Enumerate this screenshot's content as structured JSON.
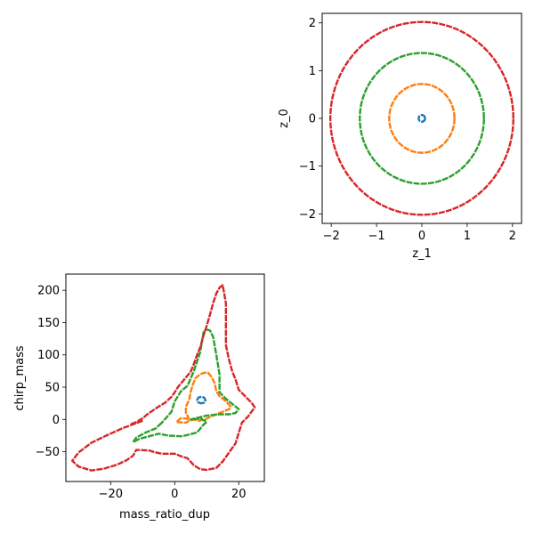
{
  "chart_data": [
    {
      "type": "line",
      "panel": "top-right",
      "xlabel": "z_1",
      "ylabel": "z_0",
      "xlim": [
        -2.2,
        2.2
      ],
      "ylim": [
        -2.2,
        2.2
      ],
      "xticks": [
        -2,
        -1,
        0,
        1,
        2
      ],
      "yticks": [
        -2,
        -1,
        0,
        1,
        2
      ],
      "tick_labels_x": [
        "−2",
        "−1",
        "0",
        "1",
        "2"
      ],
      "tick_labels_y": [
        "−2",
        "−1",
        "0",
        "1",
        "2"
      ],
      "grid": false,
      "series": [
        {
          "color": "#1f77b4",
          "shape": "circle",
          "center": [
            0,
            0
          ],
          "radius": 0.07
        },
        {
          "color": "#ff7f0e",
          "shape": "circle",
          "center": [
            0,
            0
          ],
          "radius": 0.72
        },
        {
          "color": "#2ca02c",
          "shape": "circle",
          "center": [
            0,
            0
          ],
          "radius": 1.37
        },
        {
          "color": "#d62728",
          "shape": "circle",
          "center": [
            0,
            0
          ],
          "radius": 2.02
        }
      ]
    },
    {
      "type": "line",
      "panel": "bottom-left",
      "xlabel": "mass_ratio_dup",
      "ylabel": "chirp_mass",
      "xlim": [
        -34,
        28
      ],
      "ylim": [
        -96,
        225
      ],
      "xticks": [
        -20,
        0,
        20
      ],
      "yticks": [
        -50,
        0,
        50,
        100,
        150,
        200
      ],
      "tick_labels_x": [
        "−20",
        "0",
        "20"
      ],
      "tick_labels_y": [
        "−50",
        "0",
        "50",
        "100",
        "150",
        "200"
      ],
      "grid": false,
      "series": [
        {
          "color": "#1f77b4",
          "x": [
            7.4,
            8.3,
            9.2,
            9.6,
            9.2,
            8.3,
            7.4,
            7.0,
            7.4
          ],
          "y": [
            26,
            25,
            26,
            30,
            34,
            35,
            34,
            30,
            26
          ]
        },
        {
          "color": "#ff7f0e",
          "x": [
            4.5,
            2.0,
            0.5,
            3.5,
            4.5,
            6.0,
            7.5,
            9.5,
            11.5,
            13.5,
            15.5,
            17.0,
            17.5,
            16.0,
            14.0,
            13.0,
            12.5,
            11.5,
            10.5,
            10.0,
            9.0,
            8.0,
            6.5,
            5.5,
            5.0,
            4.5,
            3.5,
            3.5,
            4.5
          ],
          "y": [
            1,
            2,
            -4,
            -5,
            -2,
            0,
            -2,
            0,
            5,
            9,
            13,
            16,
            20,
            28,
            36,
            44,
            56,
            66,
            72,
            73,
            72,
            70,
            64,
            52,
            42,
            30,
            20,
            10,
            1
          ]
        },
        {
          "color": "#2ca02c",
          "x": [
            -4,
            -6,
            -9,
            -12,
            -13,
            -11,
            -8,
            -5,
            -2,
            2,
            4,
            7,
            9,
            10,
            8,
            6,
            5,
            10,
            14,
            17,
            19,
            20,
            18,
            16,
            14,
            14,
            13,
            12,
            11,
            10,
            9,
            8,
            6,
            4,
            2,
            0,
            -1,
            -4
          ],
          "y": [
            -5,
            -14,
            -20,
            -28,
            -35,
            -30,
            -26,
            -22,
            -25,
            -26,
            -24,
            -20,
            -8,
            -4,
            2,
            0,
            0,
            6,
            8,
            8,
            10,
            16,
            24,
            32,
            42,
            70,
            100,
            128,
            138,
            139,
            135,
            105,
            75,
            52,
            44,
            28,
            12,
            -5
          ]
        },
        {
          "color": "#d62728",
          "x": [
            -10,
            -16,
            -21,
            -26,
            -30,
            -32,
            -30,
            -26,
            -22,
            -18,
            -15,
            -13,
            -12,
            -8,
            -6,
            -4,
            0,
            2,
            4,
            6,
            8,
            10,
            13,
            15,
            17,
            19,
            20,
            21,
            23,
            25,
            24,
            22,
            20,
            19,
            18,
            17,
            16,
            16,
            15,
            14,
            13,
            12,
            11,
            10,
            9,
            8,
            7,
            6,
            5,
            3,
            1,
            0,
            -1,
            -3,
            -5,
            -8,
            -10,
            -12,
            -14
          ],
          "y": [
            -2,
            -13,
            -24,
            -36,
            -51,
            -64,
            -73,
            -79,
            -76,
            -70,
            -63,
            -56,
            -47,
            -48,
            -51,
            -53,
            -53,
            -57,
            -60,
            -71,
            -77,
            -78,
            -75,
            -65,
            -51,
            -37,
            -21,
            -5,
            5,
            19,
            26,
            36,
            46,
            62,
            74,
            92,
            115,
            180,
            208,
            204,
            195,
            180,
            162,
            145,
            130,
            112,
            100,
            86,
            74,
            62,
            50,
            42,
            35,
            26,
            20,
            10,
            2,
            -4,
            -8
          ]
        }
      ]
    }
  ]
}
